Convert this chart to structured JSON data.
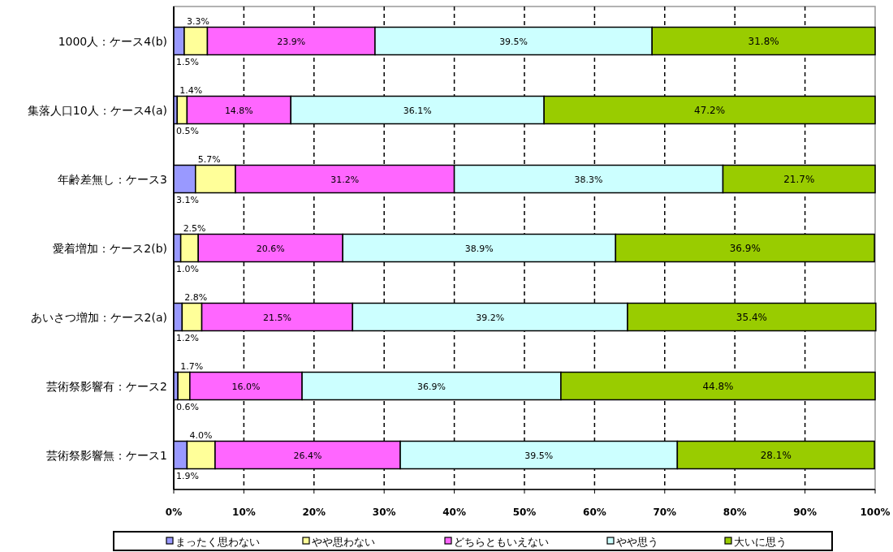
{
  "chart_data": {
    "type": "bar",
    "orientation": "horizontal",
    "stacked": true,
    "categories": [
      "1000人：ケース4(b)",
      "集落人口10人：ケース4(a)",
      "年齢差無し：ケース3",
      "愛着増加：ケース2(b)",
      "あいさつ増加：ケース2(a)",
      "芸術祭影響有：ケース2",
      "芸術祭影響無：ケース1"
    ],
    "series": [
      {
        "name": "まったく思わない",
        "color": "#9999ff",
        "values": [
          1.5,
          0.5,
          3.1,
          1.0,
          1.2,
          0.6,
          1.9
        ],
        "value_labels": [
          "1.5%",
          "0.5%",
          "3.1%",
          "1.0%",
          "1.2%",
          "0.6%",
          "1.9%"
        ]
      },
      {
        "name": "やや思わない",
        "color": "#ffff99",
        "values": [
          3.3,
          1.4,
          5.7,
          2.5,
          2.8,
          1.7,
          4.0
        ],
        "value_labels": [
          "3.3%",
          "1.4%",
          "5.7%",
          "2.5%",
          "2.8%",
          "1.7%",
          "4.0%"
        ]
      },
      {
        "name": "どちらともいえない",
        "color": "#ff66ff",
        "values": [
          23.9,
          14.8,
          31.2,
          20.6,
          21.5,
          16.0,
          26.4
        ],
        "value_labels": [
          "23.9%",
          "14.8%",
          "31.2%",
          "20.6%",
          "21.5%",
          "16.0%",
          "26.4%"
        ]
      },
      {
        "name": "やや思う",
        "color": "#ccffff",
        "values": [
          39.5,
          36.1,
          38.3,
          38.9,
          39.2,
          36.9,
          39.5
        ],
        "value_labels": [
          "39.5%",
          "36.1%",
          "38.3%",
          "38.9%",
          "39.2%",
          "36.9%",
          "39.5%"
        ]
      },
      {
        "name": "大いに思う",
        "color": "#99cc00",
        "values": [
          31.8,
          47.2,
          21.7,
          36.9,
          35.4,
          44.8,
          28.1
        ],
        "value_labels": [
          "31.8%",
          "47.2%",
          "21.7%",
          "36.9%",
          "35.4%",
          "44.8%",
          "28.1%"
        ]
      }
    ],
    "xlim": [
      0,
      100
    ],
    "xticks": [
      {
        "value": 0,
        "label": "0%"
      },
      {
        "value": 10,
        "label": "10%"
      },
      {
        "value": 20,
        "label": "20%"
      },
      {
        "value": 30,
        "label": "30%"
      },
      {
        "value": 40,
        "label": "40%"
      },
      {
        "value": 50,
        "label": "50%"
      },
      {
        "value": 60,
        "label": "60%"
      },
      {
        "value": 70,
        "label": "70%"
      },
      {
        "value": 80,
        "label": "80%"
      },
      {
        "value": 90,
        "label": "90%"
      },
      {
        "value": 100,
        "label": "100%"
      }
    ],
    "grid": "x",
    "legend": "bottom"
  }
}
